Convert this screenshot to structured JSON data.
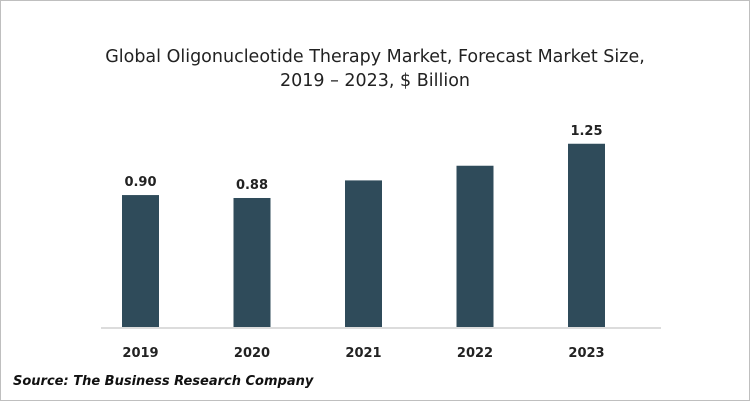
{
  "chart_data": {
    "type": "bar",
    "title_line1": "Global Oligonucleotide Therapy Market, Forecast Market Size,",
    "title_line2": "2019 – 2023, $ Billion",
    "categories": [
      "2019",
      "2020",
      "2021",
      "2022",
      "2023"
    ],
    "values": [
      0.9,
      0.88,
      1.0,
      1.1,
      1.25
    ],
    "data_labels": [
      "0.90",
      "0.88",
      "",
      "",
      "1.25"
    ],
    "xlabel": "",
    "ylabel": "",
    "ylim": [
      0,
      1.4
    ],
    "grid": false,
    "legend": "none",
    "bar_color": "#2f4b5a"
  },
  "source": "Source: The Business Research Company"
}
